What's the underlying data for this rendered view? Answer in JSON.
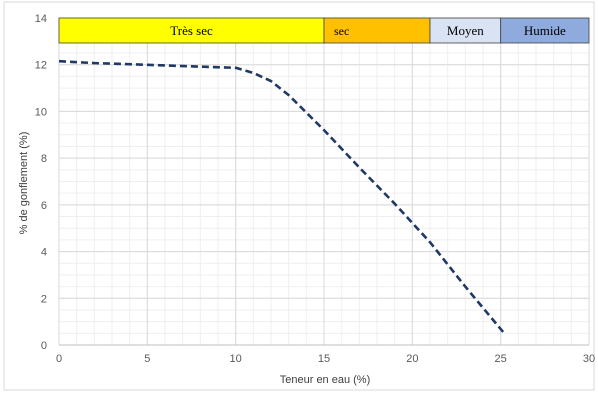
{
  "chart_data": {
    "type": "line",
    "xlabel": "Teneur en eau (%)",
    "ylabel": "% de gonflement (%)",
    "xlim": [
      0,
      30
    ],
    "ylim": [
      0,
      14
    ],
    "x_ticks": [
      0,
      5,
      10,
      15,
      20,
      25,
      30
    ],
    "y_ticks": [
      0,
      2,
      4,
      6,
      8,
      10,
      12,
      14
    ],
    "grid": {
      "major": true,
      "minor": true
    },
    "series": [
      {
        "style": "dashed",
        "color": "#1f3864",
        "points": [
          [
            0,
            12.15
          ],
          [
            2,
            12.07
          ],
          [
            4,
            12.02
          ],
          [
            6,
            11.97
          ],
          [
            8,
            11.92
          ],
          [
            10,
            11.87
          ],
          [
            11,
            11.65
          ],
          [
            12,
            11.3
          ],
          [
            13,
            10.7
          ],
          [
            15,
            9.2
          ],
          [
            17,
            7.6
          ],
          [
            19,
            6.05
          ],
          [
            21,
            4.4
          ],
          [
            23,
            2.5
          ],
          [
            25.2,
            0.5
          ]
        ]
      }
    ],
    "bands": [
      {
        "label": "Très sec",
        "from": 0,
        "to": 15,
        "color": "#ffff00"
      },
      {
        "label": "sec",
        "from": 15,
        "to": 21,
        "color": "#ffc000"
      },
      {
        "label": "Moyen",
        "from": 21,
        "to": 25,
        "color": "#dae3f3"
      },
      {
        "label": "Humide",
        "from": 25,
        "to": 30,
        "color": "#8faadc"
      }
    ]
  }
}
